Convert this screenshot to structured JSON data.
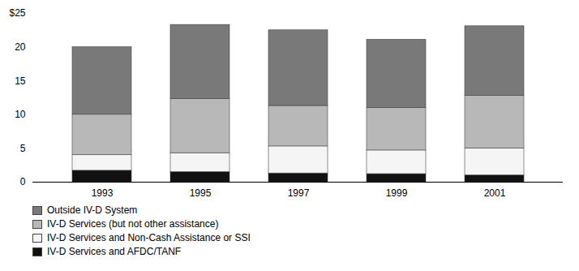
{
  "chart_data": {
    "type": "bar",
    "stacked": true,
    "categories": [
      "1993",
      "1995",
      "1997",
      "1999",
      "2001"
    ],
    "series": [
      {
        "name": "IV-D Services and AFDC/TANF",
        "color": "#111111",
        "values": [
          1.7,
          1.5,
          1.3,
          1.2,
          1.0
        ]
      },
      {
        "name": "IV-D Services and Non-Cash Assistance or SSI",
        "color": "#f5f5f5",
        "values": [
          2.3,
          2.8,
          4.0,
          3.5,
          4.0
        ]
      },
      {
        "name": "IV-D Services (but not other assistance)",
        "color": "#b8b8b8",
        "values": [
          6.0,
          8.0,
          6.0,
          6.3,
          7.8
        ]
      },
      {
        "name": "Outside IV-D System",
        "color": "#797979",
        "values": [
          10.0,
          11.0,
          11.2,
          10.1,
          10.3
        ]
      }
    ],
    "ylim": [
      0,
      25
    ],
    "yticks": [
      0,
      5,
      10,
      15,
      20,
      {
        "value": 25,
        "label": "$25"
      }
    ],
    "grid": false,
    "legend": "bottom"
  }
}
